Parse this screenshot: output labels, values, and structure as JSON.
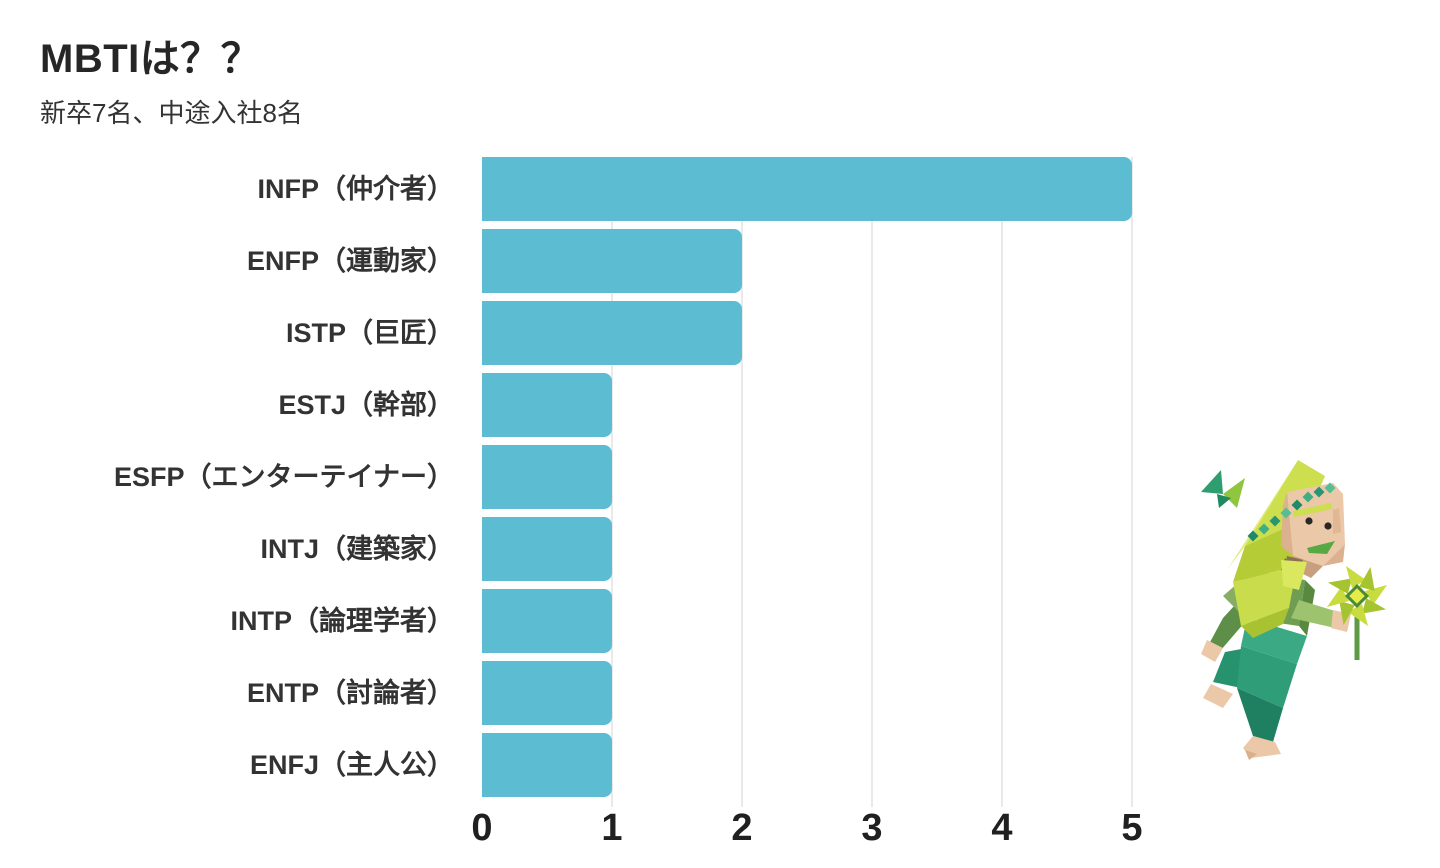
{
  "header": {
    "title": "MBTIは？？",
    "subtitle": "新卒7名、中途入社8名"
  },
  "chart_data": {
    "type": "bar",
    "orientation": "horizontal",
    "title": "MBTIは？？",
    "subtitle": "新卒7名、中途入社8名",
    "categories": [
      "INFP（仲介者）",
      "ENFP（運動家）",
      "ISTP（巨匠）",
      "ESTJ（幹部）",
      "ESFP（エンターテイナー）",
      "INTJ（建築家）",
      "INTP（論理学者）",
      "ENTP（討論者）",
      "ENFJ（主人公）"
    ],
    "values": [
      5,
      2,
      2,
      1,
      1,
      1,
      1,
      1,
      1
    ],
    "xlim": [
      0,
      5
    ],
    "x_ticks": [
      "0",
      "1",
      "2",
      "3",
      "4",
      "5"
    ],
    "grid": true,
    "legend": false,
    "bar_color": "#5cbcd2",
    "grid_color": "#e9e9e9",
    "label_color": "#333333",
    "tick_color": "#202020"
  },
  "illustration": {
    "name": "origami-person-with-pinwheel-and-butterfly",
    "palette": {
      "hood_light": "#e0ec7d",
      "hood_mid": "#cdde4e",
      "hood_dark": "#a9c232",
      "skin": "#ebc8a8",
      "skin_shadow": "#dbb190",
      "shirt_green": "#6f9e52",
      "arm_green": "#9dc36e",
      "pants_teal": "#2f9e78",
      "pants_dark": "#1e8061",
      "headband_teal": "#2a9573",
      "petal_light": "#c9dc3f",
      "petal_dark": "#a6c42f"
    }
  }
}
